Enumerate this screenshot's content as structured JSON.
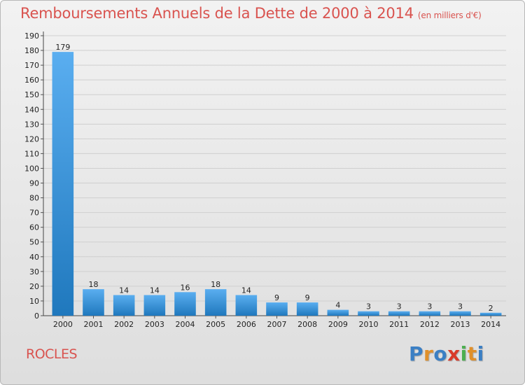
{
  "title": "Remboursements Annuels de la Dette de 2000 à 2014",
  "unit": "(en milliers d'€)",
  "city": "ROCLES",
  "logo": [
    "P",
    "r",
    "o",
    "x",
    "i",
    "t",
    "i"
  ],
  "colors": {
    "title": "#d9534f",
    "bar_top": "#5aaef0",
    "bar_bottom": "#1f78bd",
    "logo": [
      "#3b7fc4",
      "#e0902a",
      "#3b7fc4",
      "#d93a2a",
      "#4caf50",
      "#e0902a",
      "#3b7fc4"
    ]
  },
  "chart_data": {
    "type": "bar",
    "title": "Remboursements Annuels de la Dette de 2000 à 2014",
    "xlabel": "",
    "ylabel": "en milliers d'€",
    "categories": [
      "2000",
      "2001",
      "2002",
      "2003",
      "2004",
      "2005",
      "2006",
      "2007",
      "2008",
      "2009",
      "2010",
      "2011",
      "2012",
      "2013",
      "2014"
    ],
    "values": [
      179,
      18,
      14,
      14,
      16,
      18,
      14,
      9,
      9,
      4,
      3,
      3,
      3,
      3,
      2
    ],
    "ylim": [
      0,
      190
    ],
    "yticks": [
      0,
      10,
      20,
      30,
      40,
      50,
      60,
      70,
      80,
      90,
      100,
      110,
      120,
      130,
      140,
      150,
      160,
      170,
      180,
      190
    ],
    "grid": true
  }
}
